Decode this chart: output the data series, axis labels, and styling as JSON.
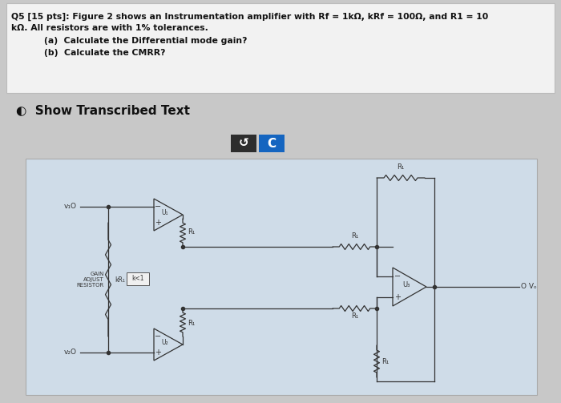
{
  "bg_color": "#c8c8c8",
  "top_box_bg": "#f2f2f2",
  "top_box_edge": "#bbbbbb",
  "circuit_bg": "#cfdce8",
  "circuit_edge": "#aaaaaa",
  "line_color": "#333333",
  "text_color": "#111111",
  "button1_bg": "#2d2d2d",
  "button2_bg": "#1565c0",
  "title_line1": "Q5 [15 pts]: Figure 2 shows an Instrumentation amplifier with Rf = 1kΩ, kRf = 100Ω, and R1 = 10",
  "title_line2": "kΩ. All resistors are with 1% tolerances.",
  "title_line3": "(a)  Calculate the Differential mode gain?",
  "title_line4": "(b)  Calculate the CMRR?",
  "show_text": "◐  Show Transcribed Text"
}
